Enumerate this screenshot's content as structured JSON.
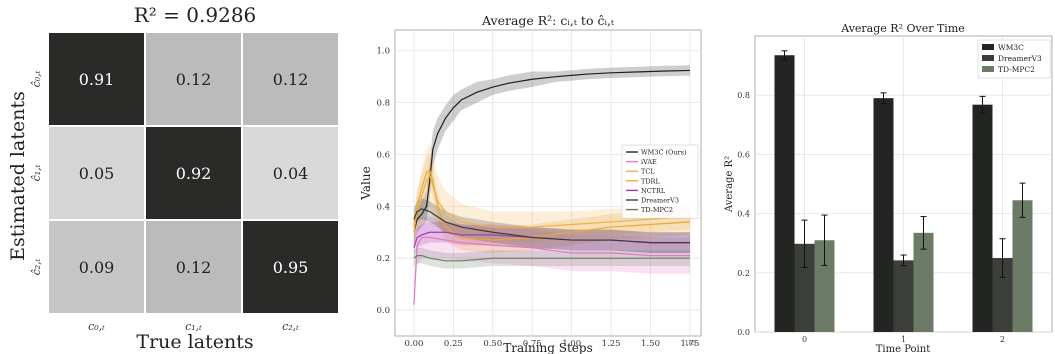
{
  "chart_data": [
    {
      "type": "heatmap",
      "title": "R² = 0.9286",
      "xlabel": "True latents",
      "ylabel": "Estimated latents",
      "x_ticks": [
        "c₀,ₜ",
        "c₁,ₜ",
        "c₂,ₜ"
      ],
      "y_ticks": [
        "ĉ₀,ₜ",
        "ĉ₁,ₜ",
        "ĉ₂,ₜ"
      ],
      "values": [
        [
          0.91,
          0.12,
          0.12
        ],
        [
          0.05,
          0.92,
          0.04
        ],
        [
          0.09,
          0.12,
          0.95
        ]
      ],
      "value_labels": [
        [
          "0.91",
          "0.12",
          "0.12"
        ],
        [
          "0.05",
          "0.92",
          "0.04"
        ],
        [
          "0.09",
          "0.12",
          "0.95"
        ]
      ],
      "colormap": [
        "#e8e8e8",
        "#2a2b29"
      ]
    },
    {
      "type": "line",
      "title": "Average R²: cᵢ,ₜ to ĉᵢ,ₜ",
      "xlabel": "Training Steps",
      "ylabel": "Value",
      "x_multiplier_label": "1e5",
      "xlim": [
        -0.12,
        1.82
      ],
      "ylim": [
        -0.1,
        1.08
      ],
      "x_ticks": [
        0.0,
        0.25,
        0.5,
        0.75,
        1.0,
        1.25,
        1.5,
        1.75
      ],
      "x_tick_labels": [
        "0.00",
        "0.25",
        "0.50",
        "0.75",
        "1.00",
        "1.25",
        "1.50",
        "1.75"
      ],
      "y_ticks": [
        0.0,
        0.2,
        0.4,
        0.6,
        0.8,
        1.0
      ],
      "y_tick_labels": [
        "0.0",
        "0.2",
        "0.4",
        "0.6",
        "0.8",
        "1.0"
      ],
      "grid": true,
      "legend_position": "center-right",
      "series": [
        {
          "name": "WM3C (Ours)",
          "color": "#1f1f1f",
          "x": [
            0,
            0.02,
            0.05,
            0.08,
            0.1,
            0.12,
            0.15,
            0.2,
            0.25,
            0.3,
            0.4,
            0.5,
            0.6,
            0.75,
            0.9,
            1.0,
            1.1,
            1.25,
            1.4,
            1.5,
            1.6,
            1.75
          ],
          "y": [
            0.3,
            0.35,
            0.37,
            0.4,
            0.5,
            0.62,
            0.68,
            0.74,
            0.78,
            0.81,
            0.84,
            0.86,
            0.875,
            0.89,
            0.9,
            0.905,
            0.91,
            0.915,
            0.918,
            0.92,
            0.922,
            0.924
          ],
          "band": [
            0.05,
            0.05,
            0.05,
            0.06,
            0.07,
            0.07,
            0.06,
            0.05,
            0.05,
            0.04,
            0.04,
            0.03,
            0.03,
            0.03,
            0.02,
            0.02,
            0.02,
            0.02,
            0.02,
            0.02,
            0.02,
            0.02
          ]
        },
        {
          "name": "iVAE",
          "color": "#e377c2",
          "x": [
            0,
            0.02,
            0.05,
            0.1,
            0.2,
            0.3,
            0.5,
            0.75,
            1.0,
            1.25,
            1.5,
            1.75
          ],
          "y": [
            0.02,
            0.25,
            0.28,
            0.28,
            0.27,
            0.26,
            0.25,
            0.24,
            0.22,
            0.22,
            0.21,
            0.21
          ],
          "band": [
            0.02,
            0.08,
            0.08,
            0.08,
            0.07,
            0.07,
            0.07,
            0.07,
            0.07,
            0.07,
            0.07,
            0.07
          ]
        },
        {
          "name": "TCL",
          "color": "#f0b050",
          "x": [
            0,
            0.02,
            0.05,
            0.08,
            0.1,
            0.12,
            0.15,
            0.2,
            0.3,
            0.5,
            0.75,
            1.0,
            1.25,
            1.5,
            1.75
          ],
          "y": [
            0.3,
            0.38,
            0.44,
            0.5,
            0.52,
            0.48,
            0.42,
            0.38,
            0.34,
            0.32,
            0.32,
            0.33,
            0.34,
            0.35,
            0.36
          ],
          "band": [
            0.06,
            0.08,
            0.1,
            0.12,
            0.12,
            0.12,
            0.1,
            0.08,
            0.07,
            0.06,
            0.06,
            0.05,
            0.05,
            0.05,
            0.05
          ]
        },
        {
          "name": "TDRL",
          "color": "#e8a838",
          "x": [
            0,
            0.02,
            0.05,
            0.08,
            0.1,
            0.12,
            0.14,
            0.17,
            0.2,
            0.3,
            0.5,
            0.75,
            1.0,
            1.25,
            1.5,
            1.75
          ],
          "y": [
            0.32,
            0.4,
            0.47,
            0.53,
            0.54,
            0.5,
            0.43,
            0.36,
            0.32,
            0.28,
            0.27,
            0.28,
            0.3,
            0.32,
            0.33,
            0.34
          ],
          "band": [
            0.05,
            0.06,
            0.06,
            0.06,
            0.06,
            0.06,
            0.05,
            0.05,
            0.05,
            0.05,
            0.05,
            0.05,
            0.05,
            0.05,
            0.05,
            0.05
          ]
        },
        {
          "name": "NCTRL",
          "color": "#9b3fb5",
          "x": [
            0,
            0.02,
            0.05,
            0.1,
            0.2,
            0.3,
            0.5,
            0.75,
            1.0,
            1.25,
            1.5,
            1.75
          ],
          "y": [
            0.24,
            0.28,
            0.29,
            0.3,
            0.3,
            0.29,
            0.29,
            0.28,
            0.27,
            0.27,
            0.26,
            0.26
          ],
          "band": [
            0.04,
            0.04,
            0.04,
            0.04,
            0.04,
            0.04,
            0.04,
            0.04,
            0.04,
            0.04,
            0.04,
            0.04
          ]
        },
        {
          "name": "DreamerV3",
          "color": "#3a3a3a",
          "x": [
            0,
            0.02,
            0.05,
            0.1,
            0.15,
            0.2,
            0.3,
            0.5,
            0.75,
            1.0,
            1.25,
            1.5,
            1.75
          ],
          "y": [
            0.35,
            0.38,
            0.39,
            0.38,
            0.36,
            0.34,
            0.32,
            0.3,
            0.28,
            0.27,
            0.27,
            0.26,
            0.26
          ],
          "band": [
            0.04,
            0.04,
            0.04,
            0.04,
            0.04,
            0.04,
            0.04,
            0.04,
            0.04,
            0.04,
            0.04,
            0.04,
            0.04
          ]
        },
        {
          "name": "TD-MPC2",
          "color": "#6b7d65",
          "x": [
            0,
            0.02,
            0.05,
            0.1,
            0.2,
            0.3,
            0.5,
            0.75,
            1.0,
            1.25,
            1.5,
            1.75
          ],
          "y": [
            0.2,
            0.21,
            0.21,
            0.2,
            0.19,
            0.19,
            0.2,
            0.2,
            0.2,
            0.2,
            0.2,
            0.2
          ],
          "band": [
            0.03,
            0.03,
            0.03,
            0.03,
            0.03,
            0.03,
            0.03,
            0.03,
            0.03,
            0.03,
            0.03,
            0.03
          ]
        }
      ]
    },
    {
      "type": "bar",
      "title": "Average R² Over Time",
      "xlabel": "Time Point",
      "ylabel": "Average R²",
      "categories": [
        "0",
        "1",
        "2"
      ],
      "ylim": [
        0,
        1.0
      ],
      "y_ticks": [
        0.0,
        0.2,
        0.4,
        0.6,
        0.8
      ],
      "y_tick_labels": [
        "0.0",
        "0.2",
        "0.4",
        "0.6",
        "0.8"
      ],
      "grid": true,
      "legend_position": "top-right",
      "series": [
        {
          "name": "WM3C",
          "color": "#222522",
          "values": [
            0.935,
            0.79,
            0.768
          ],
          "errors": [
            0.015,
            0.018,
            0.028
          ]
        },
        {
          "name": "DreamerV3",
          "color": "#3c3e3a",
          "values": [
            0.298,
            0.242,
            0.25
          ],
          "errors": [
            0.08,
            0.018,
            0.065
          ]
        },
        {
          "name": "TD-MPC2",
          "color": "#6b7b65",
          "values": [
            0.31,
            0.335,
            0.445
          ],
          "errors": [
            0.085,
            0.055,
            0.058
          ]
        }
      ]
    }
  ]
}
